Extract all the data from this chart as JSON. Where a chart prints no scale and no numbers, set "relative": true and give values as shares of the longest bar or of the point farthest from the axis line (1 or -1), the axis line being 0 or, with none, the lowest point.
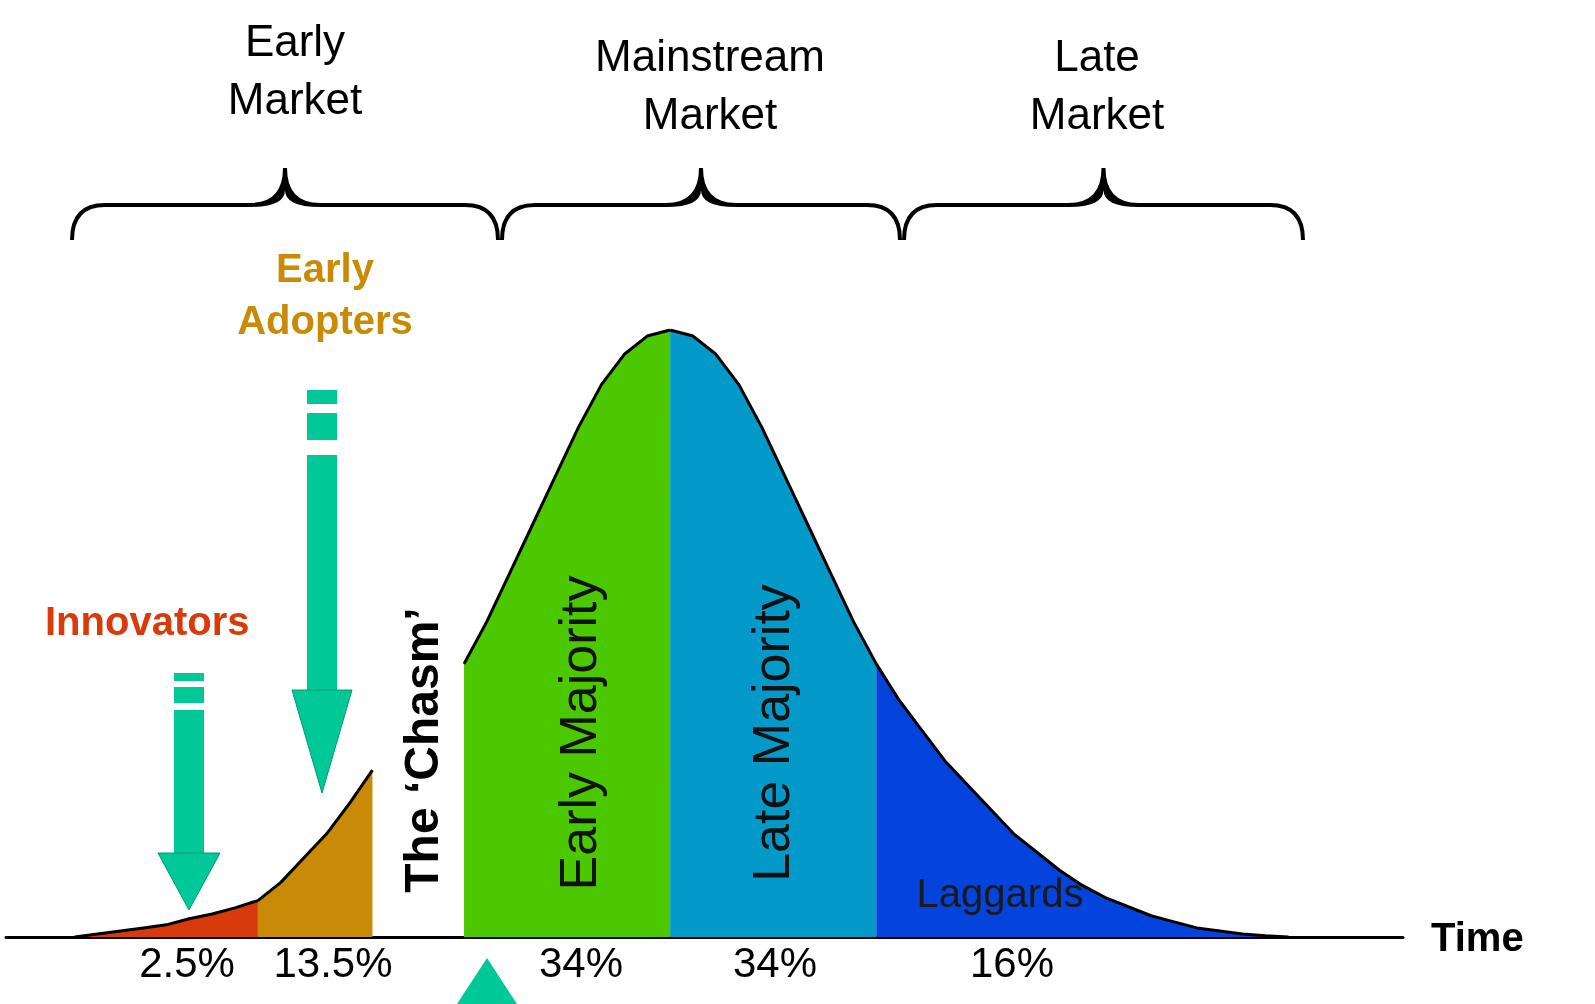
{
  "chart_data": {
    "type": "area",
    "relative": true,
    "xlabel": "Time",
    "categories": [
      null,
      null,
      null,
      null,
      null,
      null,
      null,
      null,
      null,
      null,
      null,
      null,
      null,
      null,
      null,
      null,
      null,
      null,
      null,
      null,
      null,
      null,
      null,
      null,
      null,
      null,
      null,
      null,
      null,
      null,
      null,
      null,
      null,
      null,
      null,
      null,
      null,
      null,
      null,
      null,
      null,
      null,
      null,
      null,
      null,
      null,
      null,
      null,
      null,
      null,
      null,
      null,
      null,
      null,
      null,
      null,
      null,
      null,
      null,
      null,
      null,
      null
    ],
    "series": [
      {
        "name": "Innovators",
        "color": "#d93a0c",
        "values": [
          null,
          null,
          null,
          0,
          0.005,
          0.01,
          0.015,
          0.02,
          0.03,
          0.038,
          0.048,
          0.06,
          null,
          null,
          null,
          null,
          null,
          null,
          null,
          null,
          null,
          null,
          null,
          null,
          null,
          null,
          null,
          null,
          null,
          null,
          null,
          null,
          null,
          null,
          null,
          null,
          null,
          null,
          null,
          null,
          null,
          null,
          null,
          null,
          null,
          null,
          null,
          null,
          null,
          null,
          null,
          null,
          null,
          null,
          null,
          null,
          null,
          null,
          null,
          null,
          null,
          null
        ]
      },
      {
        "name": "Early Adopters",
        "color": "#c98b05",
        "values": [
          null,
          null,
          null,
          null,
          null,
          null,
          null,
          null,
          null,
          null,
          null,
          0.06,
          0.09,
          0.13,
          0.17,
          0.22,
          0.275,
          null,
          null,
          null,
          null,
          null,
          null,
          null,
          null,
          null,
          null,
          null,
          null,
          null,
          null,
          null,
          null,
          null,
          null,
          null,
          null,
          null,
          null,
          null,
          null,
          null,
          null,
          null,
          null,
          null,
          null,
          null,
          null,
          null,
          null,
          null,
          null,
          null,
          null,
          null,
          null,
          null,
          null,
          null,
          null,
          null
        ]
      },
      {
        "name": "Early Majority",
        "color": "#4cc800",
        "values": [
          null,
          null,
          null,
          null,
          null,
          null,
          null,
          null,
          null,
          null,
          null,
          null,
          null,
          null,
          null,
          null,
          null,
          null,
          null,
          null,
          0.45,
          0.52,
          0.6,
          0.68,
          0.76,
          0.84,
          0.91,
          0.96,
          0.99,
          1,
          null,
          null,
          null,
          null,
          null,
          null,
          null,
          null,
          null,
          null,
          null,
          null,
          null,
          null,
          null,
          null,
          null,
          null,
          null,
          null,
          null,
          null,
          null,
          null,
          null,
          null,
          null,
          null,
          null,
          null,
          null,
          null
        ]
      },
      {
        "name": "Late Majority",
        "color": "#0399c8",
        "values": [
          null,
          null,
          null,
          null,
          null,
          null,
          null,
          null,
          null,
          null,
          null,
          null,
          null,
          null,
          null,
          null,
          null,
          null,
          null,
          null,
          null,
          null,
          null,
          null,
          null,
          null,
          null,
          null,
          null,
          1,
          0.99,
          0.96,
          0.91,
          0.84,
          0.76,
          0.68,
          0.6,
          0.52,
          0.45,
          null,
          null,
          null,
          null,
          null,
          null,
          null,
          null,
          null,
          null,
          null,
          null,
          null,
          null,
          null,
          null,
          null,
          null,
          null,
          null,
          null,
          null,
          null
        ]
      },
      {
        "name": "Laggards",
        "color": "#0443dc",
        "values": [
          null,
          null,
          null,
          null,
          null,
          null,
          null,
          null,
          null,
          null,
          null,
          null,
          null,
          null,
          null,
          null,
          null,
          null,
          null,
          null,
          null,
          null,
          null,
          null,
          null,
          null,
          null,
          null,
          null,
          null,
          null,
          null,
          null,
          null,
          null,
          null,
          null,
          null,
          0.45,
          0.39,
          0.34,
          0.29,
          0.25,
          0.21,
          0.17,
          0.14,
          0.11,
          0.085,
          0.065,
          0.05,
          0.035,
          0.025,
          0.015,
          0.01,
          0.005,
          0.002,
          0,
          null,
          null,
          null,
          null,
          null
        ]
      }
    ],
    "annotations": [
      "Early Market",
      "Mainstream Market",
      "Late Market",
      "The ‘Chasm’",
      "2.5%",
      "13.5%",
      "34%",
      "34%",
      "16%"
    ]
  }
}
